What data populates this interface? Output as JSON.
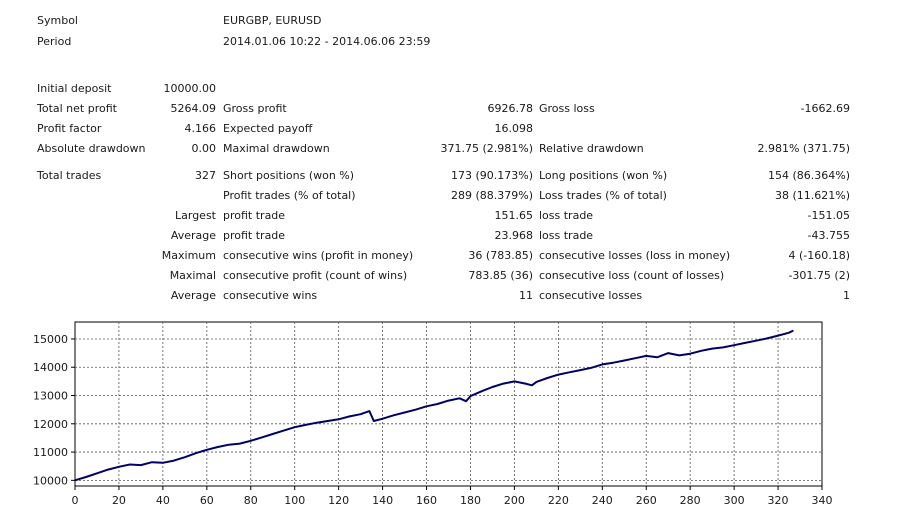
{
  "header": {
    "symbol_label": "Symbol",
    "symbol_value": "EURGBP, EURUSD",
    "period_label": "Period",
    "period_value": "2014.01.06 10:22 - 2014.06.06 23:59"
  },
  "stats": {
    "initial_deposit_label": "Initial deposit",
    "initial_deposit_value": "10000.00",
    "total_net_profit_label": "Total net profit",
    "total_net_profit_value": "5264.09",
    "gross_profit_label": "Gross profit",
    "gross_profit_value": "6926.78",
    "gross_loss_label": "Gross loss",
    "gross_loss_value": "-1662.69",
    "profit_factor_label": "Profit factor",
    "profit_factor_value": "4.166",
    "expected_payoff_label": "Expected payoff",
    "expected_payoff_value": "16.098",
    "absolute_drawdown_label": "Absolute drawdown",
    "absolute_drawdown_value": "0.00",
    "maximal_drawdown_label": "Maximal drawdown",
    "maximal_drawdown_value": "371.75 (2.981%)",
    "relative_drawdown_label": "Relative drawdown",
    "relative_drawdown_value": "2.981% (371.75)",
    "total_trades_label": "Total trades",
    "total_trades_value": "327",
    "short_positions_label": "Short positions (won %)",
    "short_positions_value": "173 (90.173%)",
    "long_positions_label": "Long positions (won %)",
    "long_positions_value": "154 (86.364%)",
    "profit_trades_label": "Profit trades (% of total)",
    "profit_trades_value": "289 (88.379%)",
    "loss_trades_label": "Loss trades (% of total)",
    "loss_trades_value": "38 (11.621%)",
    "largest_label": "Largest",
    "largest_profit_label": "profit trade",
    "largest_profit_value": "151.65",
    "largest_loss_label": "loss trade",
    "largest_loss_value": "-151.05",
    "average_label": "Average",
    "average_profit_label": "profit trade",
    "average_profit_value": "23.968",
    "average_loss_label": "loss trade",
    "average_loss_value": "-43.755",
    "maximum_label": "Maximum",
    "max_cons_wins_label": "consecutive wins (profit in money)",
    "max_cons_wins_value": "36 (783.85)",
    "max_cons_losses_label": "consecutive losses (loss in money)",
    "max_cons_losses_value": "4 (-160.18)",
    "maximal_label": "Maximal",
    "maximal_cons_profit_label": "consecutive profit (count of wins)",
    "maximal_cons_profit_value": "783.85 (36)",
    "maximal_cons_loss_label": "consecutive loss (count of losses)",
    "maximal_cons_loss_value": "-301.75 (2)",
    "average2_label": "Average",
    "avg_cons_wins_label": "consecutive wins",
    "avg_cons_wins_value": "11",
    "avg_cons_losses_label": "consecutive losses",
    "avg_cons_losses_value": "1"
  },
  "chart_data": {
    "type": "line",
    "title": "",
    "xlabel": "",
    "ylabel": "",
    "xlim": [
      0,
      340
    ],
    "ylim": [
      9800,
      15600
    ],
    "xticks": [
      0,
      20,
      40,
      60,
      80,
      100,
      120,
      140,
      160,
      180,
      200,
      220,
      240,
      260,
      280,
      300,
      320,
      340
    ],
    "yticks": [
      10000,
      11000,
      12000,
      13000,
      14000,
      15000
    ],
    "grid": true,
    "line_color": "#000066",
    "series": [
      {
        "x": [
          0,
          5,
          10,
          15,
          20,
          25,
          30,
          35,
          40,
          45,
          50,
          55,
          60,
          65,
          70,
          75,
          80,
          85,
          90,
          95,
          100,
          105,
          110,
          115,
          120,
          125,
          130,
          134,
          136,
          140,
          145,
          150,
          155,
          160,
          165,
          170,
          175,
          178,
          180,
          185,
          190,
          195,
          200,
          205,
          208,
          210,
          215,
          220,
          225,
          230,
          235,
          240,
          245,
          250,
          255,
          260,
          265,
          270,
          275,
          280,
          285,
          290,
          295,
          300,
          305,
          310,
          315,
          320,
          325,
          327
        ],
        "y": [
          10000,
          10120,
          10250,
          10380,
          10480,
          10560,
          10540,
          10640,
          10620,
          10700,
          10820,
          10960,
          11080,
          11180,
          11260,
          11300,
          11400,
          11520,
          11640,
          11760,
          11880,
          11960,
          12040,
          12100,
          12160,
          12260,
          12340,
          12450,
          12100,
          12180,
          12300,
          12400,
          12500,
          12620,
          12700,
          12820,
          12900,
          12800,
          12980,
          13150,
          13300,
          13420,
          13500,
          13420,
          13360,
          13480,
          13620,
          13740,
          13820,
          13900,
          13980,
          14100,
          14160,
          14240,
          14320,
          14400,
          14350,
          14500,
          14420,
          14480,
          14580,
          14660,
          14700,
          14780,
          14860,
          14940,
          15020,
          15120,
          15220,
          15300
        ]
      }
    ]
  }
}
